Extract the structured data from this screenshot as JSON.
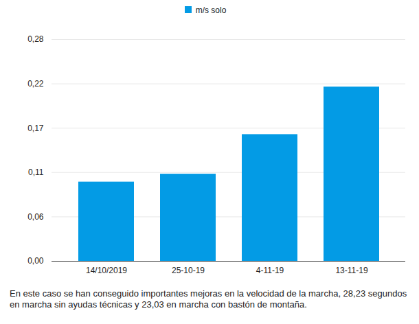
{
  "chart_data": {
    "type": "bar",
    "categories": [
      "14/10/2019",
      "25-10-19",
      "4-11-19",
      "13-11-19"
    ],
    "series": [
      {
        "name": "m/s solo",
        "color": "#039be5",
        "values": [
          0.1,
          0.11,
          0.16,
          0.22
        ]
      }
    ],
    "ylim": [
      0,
      0.28
    ],
    "yticks": [
      {
        "value": 0,
        "label": "0,00"
      },
      {
        "value": 0.056,
        "label": "0,06"
      },
      {
        "value": 0.112,
        "label": "0,11"
      },
      {
        "value": 0.168,
        "label": "0,17"
      },
      {
        "value": 0.224,
        "label": "0,22"
      },
      {
        "value": 0.28,
        "label": "0,28"
      }
    ],
    "grid": true,
    "legend": "top",
    "caption": "En este caso se han conseguido importantes mejoras en la velocidad de la marcha, 28,23 segundos en marcha sin ayudas técnicas y 23,03 en marcha con bastón de montaña."
  }
}
